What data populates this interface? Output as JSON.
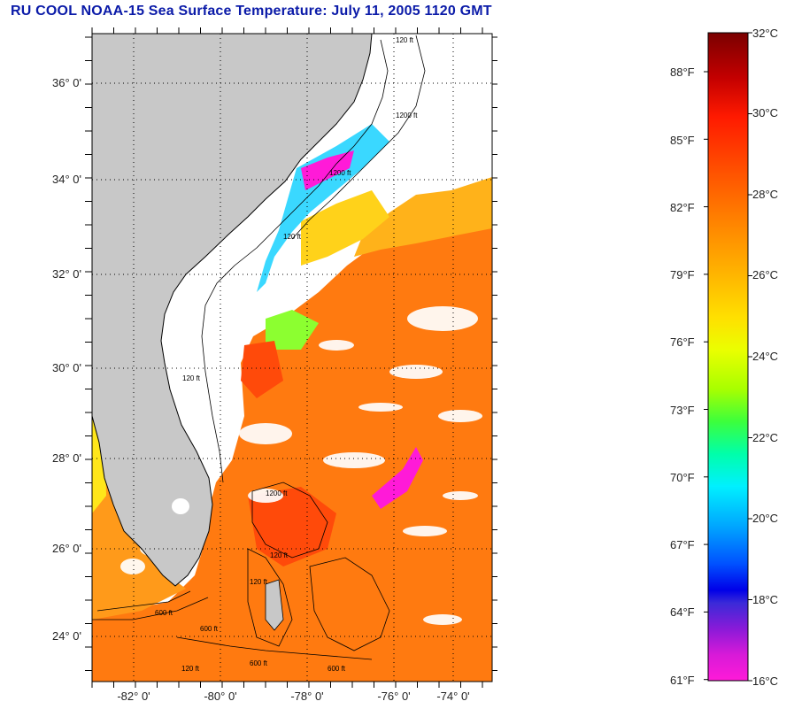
{
  "title": "RU COOL  NOAA-15  Sea Surface Temperature:  July 11, 2005 1120 GMT",
  "map": {
    "lat_labels": [
      "36° 0'",
      "34° 0'",
      "32° 0'",
      "30° 0'",
      "28° 0'",
      "26° 0'",
      "24° 0'"
    ],
    "lon_labels": [
      "-82° 0'",
      "-80° 0'",
      "-78° 0'",
      "-76° 0'",
      "-74° 0'"
    ],
    "isobath_labels": [
      "120 ft",
      "1200 ft",
      "1200 ft",
      "120 ft",
      "120 ft",
      "1200 ft",
      "120 ft",
      "120 ft",
      "600 ft",
      "600 ft",
      "120 ft",
      "600 ft",
      "600 ft"
    ],
    "colors": {
      "land": "#c8c8c8",
      "cloud": "#ffffff",
      "frame": "#000000",
      "grid": "#000000",
      "coast": "#000000"
    }
  },
  "colorbar": {
    "celsius_labels": [
      "32°C",
      "30°C",
      "28°C",
      "26°C",
      "24°C",
      "22°C",
      "20°C",
      "18°C",
      "16°C"
    ],
    "fahrenheit_labels": [
      "88°F",
      "85°F",
      "82°F",
      "79°F",
      "76°F",
      "73°F",
      "70°F",
      "67°F",
      "64°F",
      "61°F"
    ],
    "gradient_colors": [
      "#7a0000",
      "#c40000",
      "#ff1a00",
      "#ff5500",
      "#ff8800",
      "#ffb300",
      "#ffe000",
      "#eaff00",
      "#a8ff00",
      "#3cff3c",
      "#00ffaa",
      "#00f0ff",
      "#00a8ff",
      "#0050ff",
      "#0000e8",
      "#6a1adb",
      "#c21ad8",
      "#ff1ad8"
    ]
  }
}
